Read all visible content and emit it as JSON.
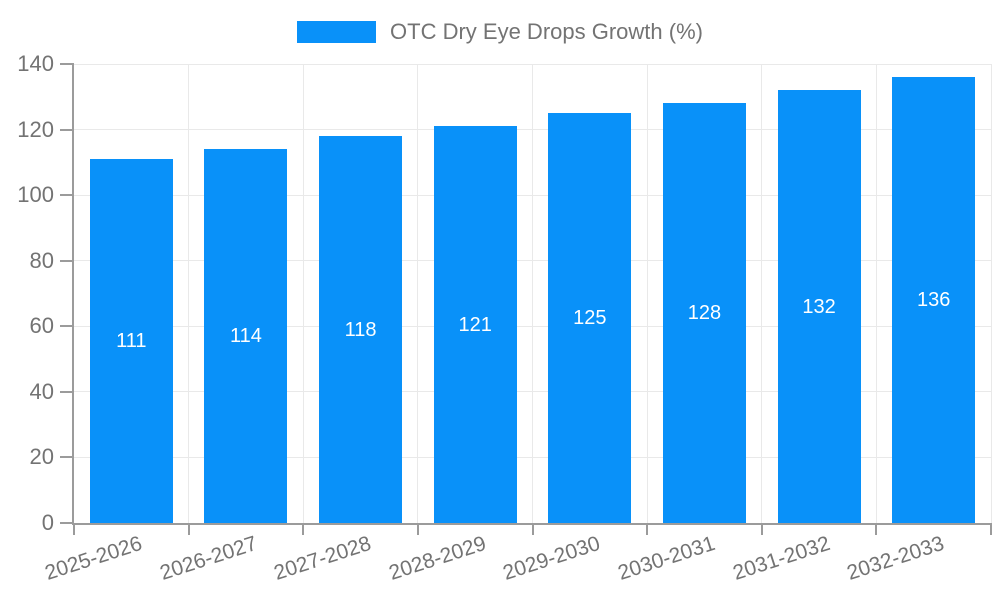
{
  "chart_data": {
    "type": "bar",
    "title": "OTC Dry Eye Drops Growth (%)",
    "categories": [
      "2025-2026",
      "2026-2027",
      "2027-2028",
      "2028-2029",
      "2029-2030",
      "2030-2031",
      "2031-2032",
      "2032-2033"
    ],
    "values": [
      111,
      114,
      118,
      121,
      125,
      128,
      132,
      136
    ],
    "yticks": [
      0,
      20,
      40,
      60,
      80,
      100,
      120,
      140
    ],
    "ylim": [
      0,
      140
    ],
    "xlabel": "",
    "ylabel": "",
    "legend": {
      "position": "top",
      "entries": [
        "OTC Dry Eye Drops Growth (%)"
      ]
    },
    "grid": true,
    "colors": {
      "bar": "#0991f9",
      "grid": "#e9e9e9",
      "axis": "#9b9b9b",
      "text": "#737373",
      "value_label": "#ffffff",
      "background": "#ffffff"
    }
  }
}
